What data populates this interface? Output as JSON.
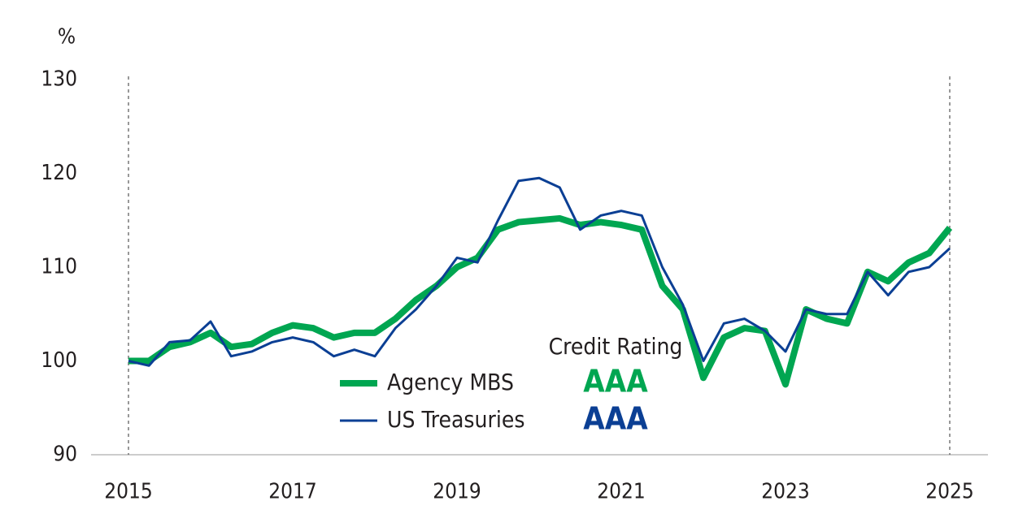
{
  "chart_data": {
    "type": "line",
    "y_unit": "%",
    "legend_title": "Credit Rating",
    "x": [
      2015,
      2015.25,
      2015.5,
      2015.75,
      2016,
      2016.25,
      2016.5,
      2016.75,
      2017,
      2017.25,
      2017.5,
      2017.75,
      2018,
      2018.25,
      2018.5,
      2018.75,
      2019,
      2019.25,
      2019.5,
      2019.75,
      2020,
      2020.25,
      2020.5,
      2020.75,
      2021,
      2021.25,
      2021.5,
      2021.75,
      2022,
      2022.25,
      2022.5,
      2022.75,
      2023,
      2023.25,
      2023.5,
      2023.75,
      2024,
      2024.25,
      2024.5,
      2024.75,
      2025
    ],
    "series": [
      {
        "name": "Agency MBS",
        "rating": "AAA",
        "color": "#00a651",
        "width": 8,
        "values": [
          100,
          100,
          101.5,
          102,
          103,
          101.5,
          101.8,
          103,
          103.8,
          103.5,
          102.5,
          103,
          103,
          104.5,
          106.5,
          108,
          110,
          111,
          114,
          114.8,
          115,
          115.2,
          114.5,
          114.8,
          114.5,
          114,
          108,
          105.5,
          98.2,
          102.5,
          103.5,
          103.2,
          97.5,
          105.5,
          104.5,
          104,
          109.5,
          108.5,
          110.5,
          111.5,
          114.2
        ]
      },
      {
        "name": "US Treasuries",
        "rating": "AAA",
        "color": "#0b3f94",
        "width": 3,
        "values": [
          100,
          99.5,
          102,
          102.2,
          104.2,
          100.5,
          101,
          102,
          102.5,
          102,
          100.5,
          101.2,
          100.5,
          103.5,
          105.5,
          108,
          111,
          110.5,
          115,
          119.2,
          119.5,
          118.5,
          114,
          115.5,
          116,
          115.5,
          110,
          106,
          100,
          104,
          104.5,
          103.2,
          101,
          105.5,
          105,
          105,
          109.5,
          107,
          109.5,
          110,
          112
        ]
      }
    ],
    "xlim": [
      2015,
      2025
    ],
    "xticks": [
      2015,
      2017,
      2019,
      2021,
      2023,
      2025
    ],
    "ylim": [
      90,
      130
    ],
    "yticks": [
      90,
      100,
      110,
      120,
      130
    ],
    "grid": false
  }
}
